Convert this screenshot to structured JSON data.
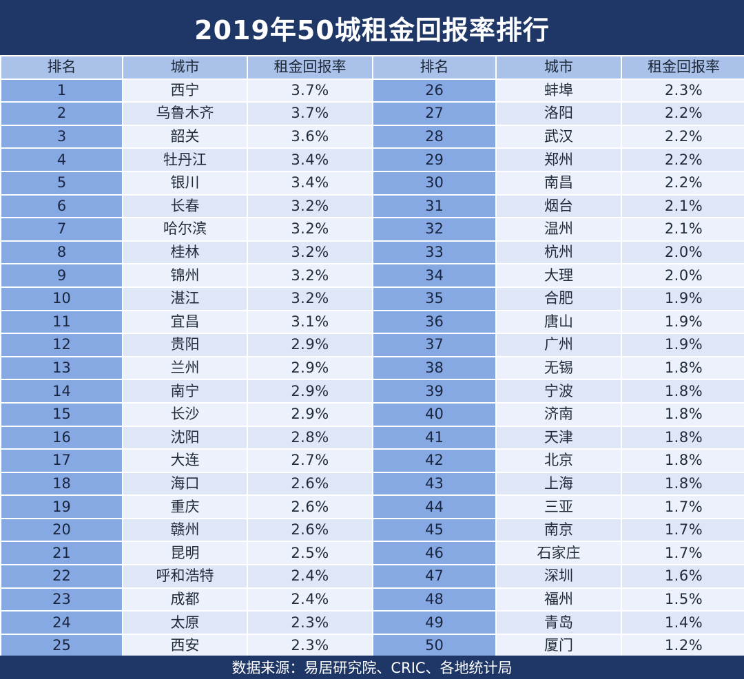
{
  "title": "2019年50城租金回报率排行",
  "columns": {
    "rank": "排名",
    "city": "城市",
    "rate": "租金回报率"
  },
  "rows": [
    {
      "left": {
        "rank": "1",
        "city": "西宁",
        "rate": "3.7%"
      },
      "right": {
        "rank": "26",
        "city": "蚌埠",
        "rate": "2.3%"
      }
    },
    {
      "left": {
        "rank": "2",
        "city": "乌鲁木齐",
        "rate": "3.7%"
      },
      "right": {
        "rank": "27",
        "city": "洛阳",
        "rate": "2.2%"
      }
    },
    {
      "left": {
        "rank": "3",
        "city": "韶关",
        "rate": "3.6%"
      },
      "right": {
        "rank": "28",
        "city": "武汉",
        "rate": "2.2%"
      }
    },
    {
      "left": {
        "rank": "4",
        "city": "牡丹江",
        "rate": "3.4%"
      },
      "right": {
        "rank": "29",
        "city": "郑州",
        "rate": "2.2%"
      }
    },
    {
      "left": {
        "rank": "5",
        "city": "银川",
        "rate": "3.4%"
      },
      "right": {
        "rank": "30",
        "city": "南昌",
        "rate": "2.2%"
      }
    },
    {
      "left": {
        "rank": "6",
        "city": "长春",
        "rate": "3.2%"
      },
      "right": {
        "rank": "31",
        "city": "烟台",
        "rate": "2.1%"
      }
    },
    {
      "left": {
        "rank": "7",
        "city": "哈尔滨",
        "rate": "3.2%"
      },
      "right": {
        "rank": "32",
        "city": "温州",
        "rate": "2.1%"
      }
    },
    {
      "left": {
        "rank": "8",
        "city": "桂林",
        "rate": "3.2%"
      },
      "right": {
        "rank": "33",
        "city": "杭州",
        "rate": "2.0%"
      }
    },
    {
      "left": {
        "rank": "9",
        "city": "锦州",
        "rate": "3.2%"
      },
      "right": {
        "rank": "34",
        "city": "大理",
        "rate": "2.0%"
      }
    },
    {
      "left": {
        "rank": "10",
        "city": "湛江",
        "rate": "3.2%"
      },
      "right": {
        "rank": "35",
        "city": "合肥",
        "rate": "1.9%"
      }
    },
    {
      "left": {
        "rank": "11",
        "city": "宜昌",
        "rate": "3.1%"
      },
      "right": {
        "rank": "36",
        "city": "唐山",
        "rate": "1.9%"
      }
    },
    {
      "left": {
        "rank": "12",
        "city": "贵阳",
        "rate": "2.9%"
      },
      "right": {
        "rank": "37",
        "city": "广州",
        "rate": "1.9%"
      }
    },
    {
      "left": {
        "rank": "13",
        "city": "兰州",
        "rate": "2.9%"
      },
      "right": {
        "rank": "38",
        "city": "无锡",
        "rate": "1.8%"
      }
    },
    {
      "left": {
        "rank": "14",
        "city": "南宁",
        "rate": "2.9%"
      },
      "right": {
        "rank": "39",
        "city": "宁波",
        "rate": "1.8%"
      }
    },
    {
      "left": {
        "rank": "15",
        "city": "长沙",
        "rate": "2.9%"
      },
      "right": {
        "rank": "40",
        "city": "济南",
        "rate": "1.8%"
      }
    },
    {
      "left": {
        "rank": "16",
        "city": "沈阳",
        "rate": "2.8%"
      },
      "right": {
        "rank": "41",
        "city": "天津",
        "rate": "1.8%"
      }
    },
    {
      "left": {
        "rank": "17",
        "city": "大连",
        "rate": "2.7%"
      },
      "right": {
        "rank": "42",
        "city": "北京",
        "rate": "1.8%"
      }
    },
    {
      "left": {
        "rank": "18",
        "city": "海口",
        "rate": "2.6%"
      },
      "right": {
        "rank": "43",
        "city": "上海",
        "rate": "1.8%"
      }
    },
    {
      "left": {
        "rank": "19",
        "city": "重庆",
        "rate": "2.6%"
      },
      "right": {
        "rank": "44",
        "city": "三亚",
        "rate": "1.7%"
      }
    },
    {
      "left": {
        "rank": "20",
        "city": "赣州",
        "rate": "2.6%"
      },
      "right": {
        "rank": "45",
        "city": "南京",
        "rate": "1.7%"
      }
    },
    {
      "left": {
        "rank": "21",
        "city": "昆明",
        "rate": "2.5%"
      },
      "right": {
        "rank": "46",
        "city": "石家庄",
        "rate": "1.7%"
      }
    },
    {
      "left": {
        "rank": "22",
        "city": "呼和浩特",
        "rate": "2.4%"
      },
      "right": {
        "rank": "47",
        "city": "深圳",
        "rate": "1.6%"
      }
    },
    {
      "left": {
        "rank": "23",
        "city": "成都",
        "rate": "2.4%"
      },
      "right": {
        "rank": "48",
        "city": "福州",
        "rate": "1.5%"
      }
    },
    {
      "left": {
        "rank": "24",
        "city": "太原",
        "rate": "2.3%"
      },
      "right": {
        "rank": "49",
        "city": "青岛",
        "rate": "1.4%"
      }
    },
    {
      "left": {
        "rank": "25",
        "city": "西安",
        "rate": "2.3%"
      },
      "right": {
        "rank": "50",
        "city": "厦门",
        "rate": "1.2%"
      }
    }
  ],
  "footer": "数据来源：易居研究院、CRIC、各地统计局",
  "colors": {
    "title_bg": "#1f3767",
    "header_bg": "#aac2ea",
    "rank_bg": "#86a9e4",
    "cell_bg": "#ecf1fb",
    "cell_alt_bg": "#dfe7f7"
  }
}
